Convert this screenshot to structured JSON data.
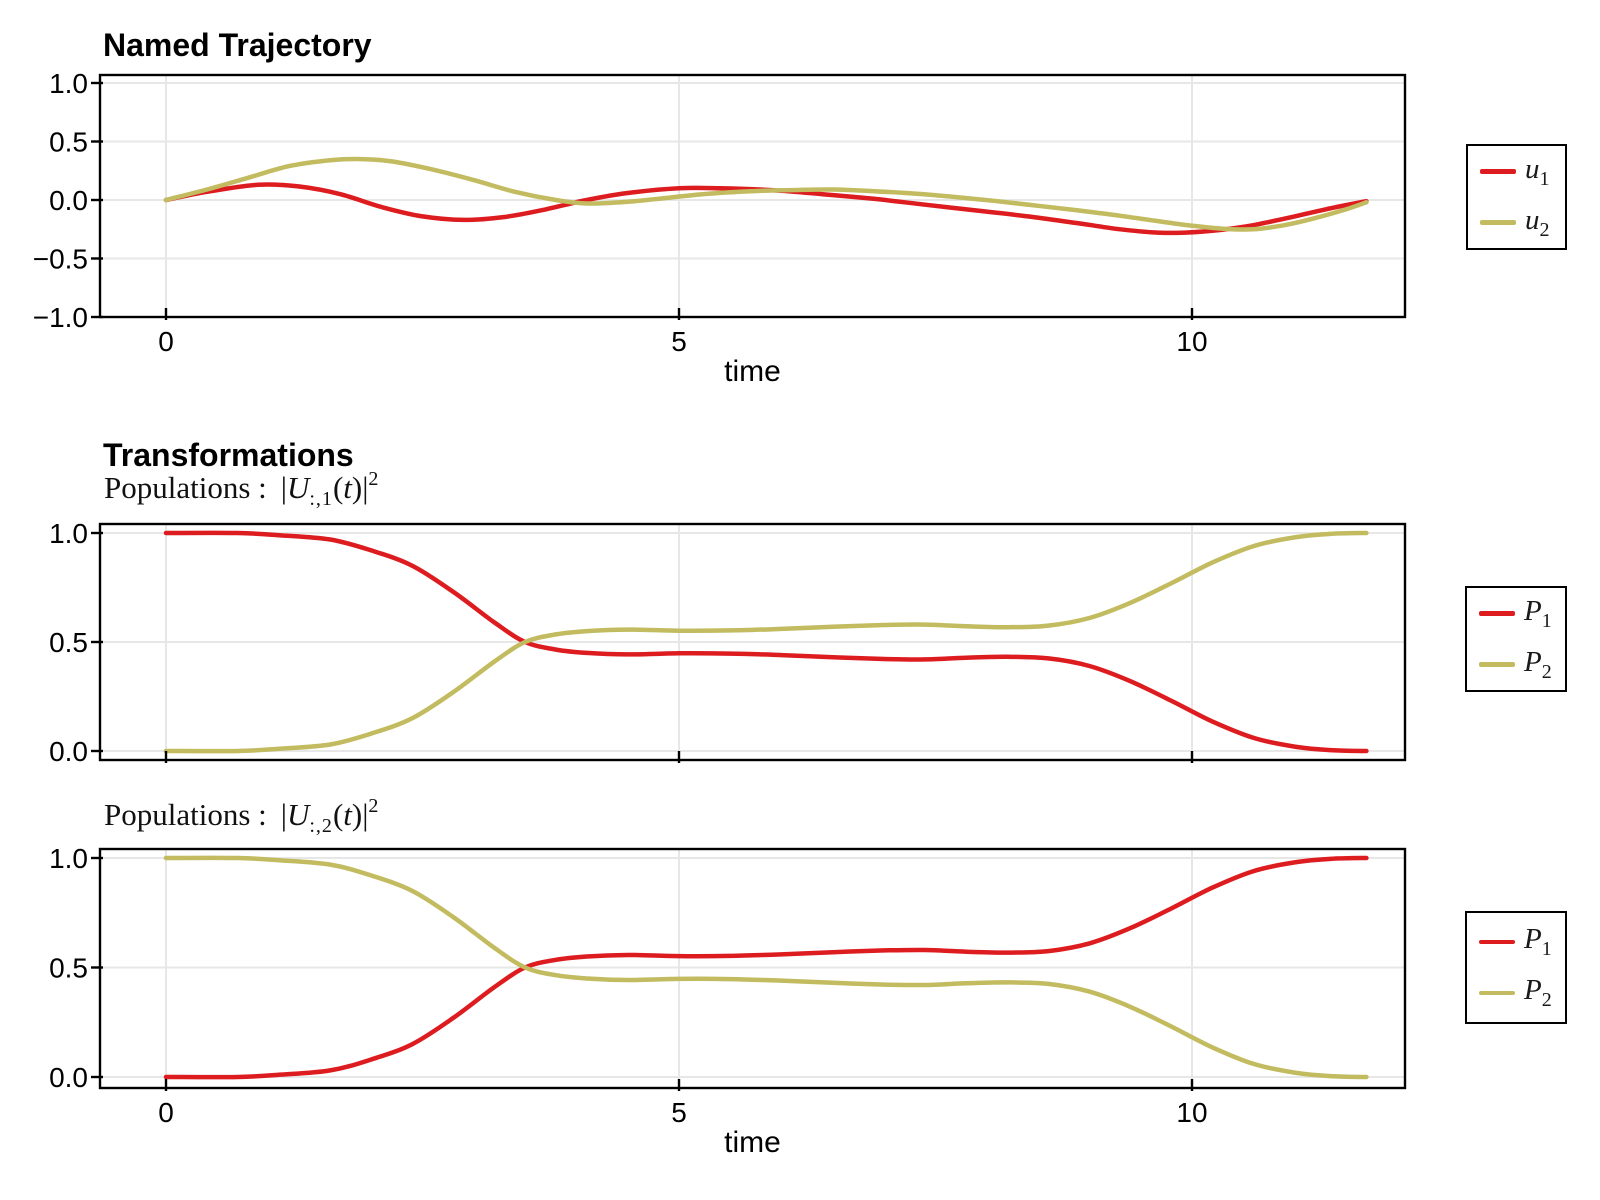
{
  "colors": {
    "series1": "#DD1C20",
    "series2": "#C2BB60",
    "grid": "#E7E7E7",
    "frame": "#000000",
    "background": "#ffffff"
  },
  "figures": [
    {
      "title": "Named Trajectory",
      "xlabel": "time",
      "legend": [
        {
          "main": "u",
          "sub": "1"
        },
        {
          "main": "u",
          "sub": "2"
        }
      ]
    },
    {
      "suptitle": "Transformations",
      "subtitle": {
        "prefix": "Populations :",
        "lbar": "|",
        "u": "U",
        "sub": ":,1",
        "lp": "(",
        "t": "t",
        "rp": ")|",
        "sup": "2"
      },
      "legend": [
        {
          "main": "P",
          "sub": "1"
        },
        {
          "main": "P",
          "sub": "2"
        }
      ]
    },
    {
      "subtitle": {
        "prefix": "Populations :",
        "lbar": "|",
        "u": "U",
        "sub": ":,2",
        "lp": "(",
        "t": "t",
        "rp": ")|",
        "sup": "2"
      },
      "xlabel": "time",
      "legend": [
        {
          "main": "P",
          "sub": "1"
        },
        {
          "main": "P",
          "sub": "2"
        }
      ]
    }
  ],
  "chart_data": [
    {
      "type": "line",
      "title": "Named Trajectory",
      "xlabel": "time",
      "ylabel": "",
      "xlim": [
        -0.64,
        12.08
      ],
      "ylim": [
        -1.0,
        1.07
      ],
      "xtick_values": [
        0,
        5,
        10
      ],
      "xtick_labels": [
        "0",
        "5",
        "10"
      ],
      "ytick_values": [
        1.0,
        0.5,
        0.0,
        -0.5,
        -1.0
      ],
      "ytick_labels": [
        "1.0",
        "0.5",
        "0.0",
        "−0.5",
        "−1.0"
      ],
      "grid": true,
      "legend_position": "outer-right",
      "series": [
        {
          "name": "u1",
          "color": "#DD1C20",
          "points": [
            [
              0,
              0.0
            ],
            [
              0.4,
              0.07
            ],
            [
              0.9,
              0.13
            ],
            [
              1.3,
              0.115
            ],
            [
              1.7,
              0.05
            ],
            [
              2.1,
              -0.06
            ],
            [
              2.5,
              -0.14
            ],
            [
              2.9,
              -0.17
            ],
            [
              3.3,
              -0.145
            ],
            [
              3.7,
              -0.08
            ],
            [
              4.1,
              0.0
            ],
            [
              4.5,
              0.06
            ],
            [
              5.0,
              0.1
            ],
            [
              5.4,
              0.1
            ],
            [
              5.9,
              0.085
            ],
            [
              6.4,
              0.05
            ],
            [
              6.9,
              0.01
            ],
            [
              7.4,
              -0.04
            ],
            [
              7.9,
              -0.09
            ],
            [
              8.4,
              -0.14
            ],
            [
              8.9,
              -0.2
            ],
            [
              9.3,
              -0.25
            ],
            [
              9.7,
              -0.28
            ],
            [
              10.1,
              -0.27
            ],
            [
              10.5,
              -0.23
            ],
            [
              10.9,
              -0.16
            ],
            [
              11.3,
              -0.08
            ],
            [
              11.7,
              -0.01
            ]
          ]
        },
        {
          "name": "u2",
          "color": "#C2BB60",
          "points": [
            [
              0,
              0.0
            ],
            [
              0.4,
              0.09
            ],
            [
              0.8,
              0.19
            ],
            [
              1.2,
              0.29
            ],
            [
              1.6,
              0.34
            ],
            [
              1.9,
              0.35
            ],
            [
              2.2,
              0.33
            ],
            [
              2.6,
              0.26
            ],
            [
              3.0,
              0.17
            ],
            [
              3.4,
              0.07
            ],
            [
              3.8,
              0.0
            ],
            [
              4.1,
              -0.03
            ],
            [
              4.5,
              -0.015
            ],
            [
              4.9,
              0.02
            ],
            [
              5.3,
              0.055
            ],
            [
              5.7,
              0.075
            ],
            [
              6.1,
              0.085
            ],
            [
              6.5,
              0.09
            ],
            [
              6.9,
              0.075
            ],
            [
              7.3,
              0.055
            ],
            [
              7.7,
              0.025
            ],
            [
              8.1,
              -0.01
            ],
            [
              8.5,
              -0.05
            ],
            [
              8.9,
              -0.09
            ],
            [
              9.3,
              -0.135
            ],
            [
              9.7,
              -0.185
            ],
            [
              10.0,
              -0.22
            ],
            [
              10.3,
              -0.245
            ],
            [
              10.6,
              -0.25
            ],
            [
              10.9,
              -0.215
            ],
            [
              11.2,
              -0.155
            ],
            [
              11.5,
              -0.08
            ],
            [
              11.7,
              -0.02
            ]
          ]
        }
      ]
    },
    {
      "type": "line",
      "title": "Populations : |U_:,1(t)|^2",
      "xlabel": "",
      "ylabel": "",
      "xlim": [
        -0.64,
        12.08
      ],
      "ylim": [
        -0.04,
        1.04
      ],
      "xtick_values": [
        0,
        5,
        10
      ],
      "xtick_labels": [],
      "ytick_values": [
        1.0,
        0.5,
        0.0
      ],
      "ytick_labels": [
        "1.0",
        "0.5",
        "0.0"
      ],
      "grid": true,
      "legend_position": "outer-right",
      "series": [
        {
          "name": "P1",
          "color": "#DD1C20",
          "points": [
            [
              0,
              1.0
            ],
            [
              0.7,
              1.0
            ],
            [
              1.1,
              0.99
            ],
            [
              1.6,
              0.97
            ],
            [
              2.0,
              0.92
            ],
            [
              2.4,
              0.85
            ],
            [
              2.8,
              0.73
            ],
            [
              3.2,
              0.59
            ],
            [
              3.5,
              0.5
            ],
            [
              3.8,
              0.465
            ],
            [
              4.1,
              0.45
            ],
            [
              4.5,
              0.443
            ],
            [
              5.0,
              0.448
            ],
            [
              5.5,
              0.447
            ],
            [
              6.0,
              0.44
            ],
            [
              6.5,
              0.43
            ],
            [
              7.0,
              0.422
            ],
            [
              7.4,
              0.42
            ],
            [
              7.8,
              0.428
            ],
            [
              8.2,
              0.432
            ],
            [
              8.6,
              0.425
            ],
            [
              9.0,
              0.39
            ],
            [
              9.4,
              0.32
            ],
            [
              9.8,
              0.23
            ],
            [
              10.2,
              0.135
            ],
            [
              10.6,
              0.06
            ],
            [
              11.0,
              0.02
            ],
            [
              11.35,
              0.004
            ],
            [
              11.7,
              0.0
            ]
          ]
        },
        {
          "name": "P2",
          "color": "#C2BB60",
          "points": [
            [
              0,
              0.0
            ],
            [
              0.7,
              0.0
            ],
            [
              1.1,
              0.01
            ],
            [
              1.6,
              0.03
            ],
            [
              2.0,
              0.08
            ],
            [
              2.4,
              0.15
            ],
            [
              2.8,
              0.27
            ],
            [
              3.2,
              0.41
            ],
            [
              3.5,
              0.5
            ],
            [
              3.8,
              0.535
            ],
            [
              4.1,
              0.55
            ],
            [
              4.5,
              0.557
            ],
            [
              5.0,
              0.552
            ],
            [
              5.5,
              0.553
            ],
            [
              6.0,
              0.56
            ],
            [
              6.5,
              0.57
            ],
            [
              7.0,
              0.578
            ],
            [
              7.4,
              0.58
            ],
            [
              7.8,
              0.572
            ],
            [
              8.2,
              0.568
            ],
            [
              8.6,
              0.575
            ],
            [
              9.0,
              0.61
            ],
            [
              9.4,
              0.68
            ],
            [
              9.8,
              0.77
            ],
            [
              10.2,
              0.865
            ],
            [
              10.6,
              0.94
            ],
            [
              11.0,
              0.98
            ],
            [
              11.35,
              0.996
            ],
            [
              11.7,
              1.0
            ]
          ]
        }
      ]
    },
    {
      "type": "line",
      "title": "Populations : |U_:,2(t)|^2",
      "xlabel": "time",
      "ylabel": "",
      "xlim": [
        -0.64,
        12.08
      ],
      "ylim": [
        -0.05,
        1.04
      ],
      "xtick_values": [
        0,
        5,
        10
      ],
      "xtick_labels": [
        "0",
        "5",
        "10"
      ],
      "ytick_values": [
        1.0,
        0.5,
        0.0
      ],
      "ytick_labels": [
        "1.0",
        "0.5",
        "0.0"
      ],
      "grid": true,
      "legend_position": "outer-right",
      "series": [
        {
          "name": "P1",
          "color": "#DD1C20",
          "points": [
            [
              0,
              0.0
            ],
            [
              0.7,
              0.0
            ],
            [
              1.1,
              0.01
            ],
            [
              1.6,
              0.03
            ],
            [
              2.0,
              0.08
            ],
            [
              2.4,
              0.15
            ],
            [
              2.8,
              0.27
            ],
            [
              3.2,
              0.41
            ],
            [
              3.5,
              0.5
            ],
            [
              3.8,
              0.535
            ],
            [
              4.1,
              0.55
            ],
            [
              4.5,
              0.557
            ],
            [
              5.0,
              0.552
            ],
            [
              5.5,
              0.553
            ],
            [
              6.0,
              0.56
            ],
            [
              6.5,
              0.57
            ],
            [
              7.0,
              0.578
            ],
            [
              7.4,
              0.58
            ],
            [
              7.8,
              0.572
            ],
            [
              8.2,
              0.568
            ],
            [
              8.6,
              0.575
            ],
            [
              9.0,
              0.61
            ],
            [
              9.4,
              0.68
            ],
            [
              9.8,
              0.77
            ],
            [
              10.2,
              0.865
            ],
            [
              10.6,
              0.94
            ],
            [
              11.0,
              0.98
            ],
            [
              11.35,
              0.996
            ],
            [
              11.7,
              1.0
            ]
          ]
        },
        {
          "name": "P2",
          "color": "#C2BB60",
          "points": [
            [
              0,
              1.0
            ],
            [
              0.7,
              1.0
            ],
            [
              1.1,
              0.99
            ],
            [
              1.6,
              0.97
            ],
            [
              2.0,
              0.92
            ],
            [
              2.4,
              0.85
            ],
            [
              2.8,
              0.73
            ],
            [
              3.2,
              0.59
            ],
            [
              3.5,
              0.5
            ],
            [
              3.8,
              0.465
            ],
            [
              4.1,
              0.45
            ],
            [
              4.5,
              0.443
            ],
            [
              5.0,
              0.448
            ],
            [
              5.5,
              0.447
            ],
            [
              6.0,
              0.44
            ],
            [
              6.5,
              0.43
            ],
            [
              7.0,
              0.422
            ],
            [
              7.4,
              0.42
            ],
            [
              7.8,
              0.428
            ],
            [
              8.2,
              0.432
            ],
            [
              8.6,
              0.425
            ],
            [
              9.0,
              0.39
            ],
            [
              9.4,
              0.32
            ],
            [
              9.8,
              0.23
            ],
            [
              10.2,
              0.135
            ],
            [
              10.6,
              0.06
            ],
            [
              11.0,
              0.02
            ],
            [
              11.35,
              0.004
            ],
            [
              11.7,
              0.0
            ]
          ]
        }
      ]
    }
  ]
}
